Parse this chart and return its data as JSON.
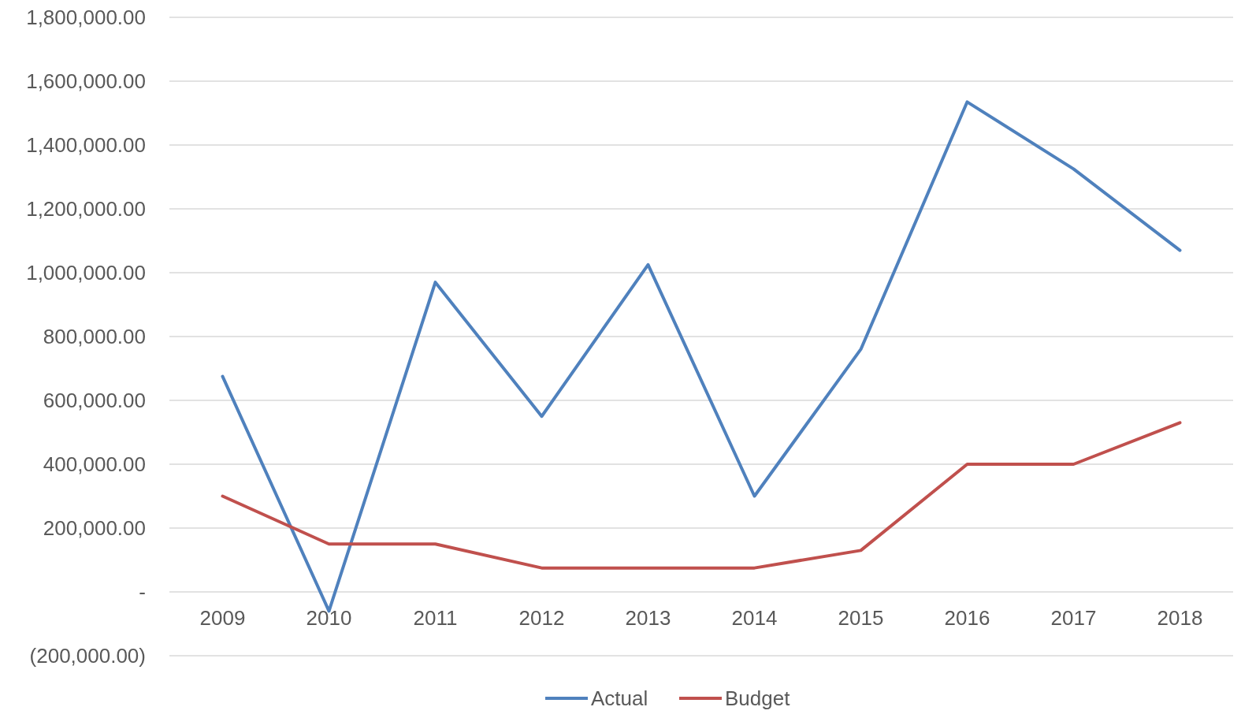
{
  "chart_data": {
    "type": "line",
    "categories": [
      "2009",
      "2010",
      "2011",
      "2012",
      "2013",
      "2014",
      "2015",
      "2016",
      "2017",
      "2018"
    ],
    "series": [
      {
        "name": "Actual",
        "color": "#4f81bd",
        "values": [
          675000,
          -60000,
          970000,
          550000,
          1025000,
          300000,
          760000,
          1535000,
          1325000,
          1070000
        ]
      },
      {
        "name": "Budget",
        "color": "#c0504d",
        "values": [
          300000,
          150000,
          150000,
          75000,
          75000,
          75000,
          130000,
          400000,
          400000,
          530000
        ]
      }
    ],
    "ylim": [
      -200000,
      1800000
    ],
    "yticks": [
      {
        "value": -200000,
        "label": "(200,000.00)"
      },
      {
        "value": 0,
        "label": "-"
      },
      {
        "value": 200000,
        "label": "200,000.00"
      },
      {
        "value": 400000,
        "label": "400,000.00"
      },
      {
        "value": 600000,
        "label": "600,000.00"
      },
      {
        "value": 800000,
        "label": "800,000.00"
      },
      {
        "value": 1000000,
        "label": "1,000,000.00"
      },
      {
        "value": 1200000,
        "label": "1,200,000.00"
      },
      {
        "value": 1400000,
        "label": "1,400,000.00"
      },
      {
        "value": 1600000,
        "label": "1,600,000.00"
      },
      {
        "value": 1800000,
        "label": "1,800,000.00"
      }
    ],
    "grid": "y",
    "legend": "bottom",
    "marker": "none",
    "line_style": "solid"
  }
}
